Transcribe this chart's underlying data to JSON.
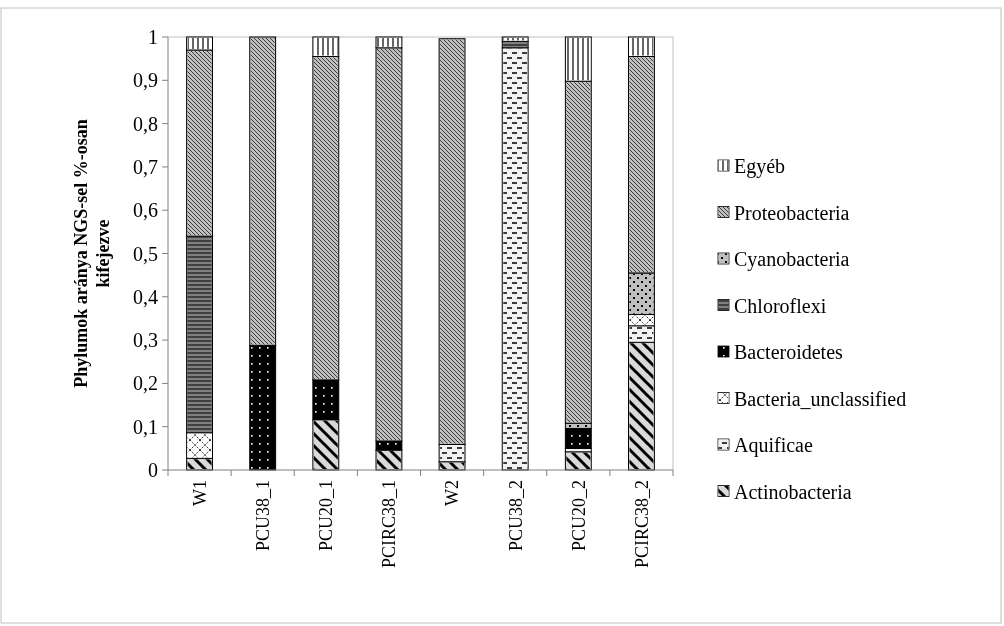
{
  "chart_data": {
    "type": "bar",
    "stacked": true,
    "ylabel": "Phylumok aránya NGS-sel %-osan kifejezve",
    "categories": [
      "W1",
      "PCU38_1",
      "PCU20_1",
      "PCIRC38_1",
      "W2",
      "PCU38_2",
      "PCU20_2",
      "PCIRC38_2"
    ],
    "series": [
      {
        "name": "Actinobacteria",
        "color": "#d9d9d9",
        "values": [
          0.027,
          0,
          0.116,
          0.046,
          0.019,
          0,
          0.042,
          0.295
        ]
      },
      {
        "name": "Aquificae",
        "color": "#f2f2f2",
        "values": [
          0,
          0,
          0,
          0,
          0.04,
          0.975,
          0.008,
          0.038
        ]
      },
      {
        "name": "Bacteria_unclassified",
        "color": "#ffffff",
        "values": [
          0.059,
          0,
          0,
          0,
          0,
          0,
          0,
          0.026
        ]
      },
      {
        "name": "Bacteroidetes",
        "color": "#000000",
        "values": [
          0,
          0.288,
          0.092,
          0.021,
          0,
          0,
          0.046,
          0
        ]
      },
      {
        "name": "Chloroflexi",
        "color": "#808080",
        "values": [
          0.454,
          0,
          0,
          0,
          0,
          0.015,
          0,
          0
        ]
      },
      {
        "name": "Cyanobacteria",
        "color": "#bfbfbf",
        "values": [
          0,
          0,
          0,
          0,
          0,
          0,
          0.012,
          0.096
        ]
      },
      {
        "name": "Proteobacteria",
        "color": "#c0c0c0",
        "values": [
          0.43,
          0.712,
          0.747,
          0.908,
          0.937,
          0,
          0.79,
          0.5
        ]
      },
      {
        "name": "Egyéb",
        "color": "#ffffff",
        "values": [
          0.03,
          0,
          0.045,
          0.025,
          0,
          0.01,
          0.102,
          0.045
        ]
      }
    ],
    "ylim": [
      0,
      1
    ],
    "yticks": [
      0,
      {
        "value": 0.1,
        "label": "0,1"
      },
      {
        "value": 0.2,
        "label": "0,2"
      },
      {
        "value": 0.3,
        "label": "0,3"
      },
      {
        "value": 0.4,
        "label": "0,4"
      },
      {
        "value": 0.5,
        "label": "0,5"
      },
      {
        "value": 0.6,
        "label": "0,6"
      },
      {
        "value": 0.7,
        "label": "0,7"
      },
      {
        "value": 0.8,
        "label": "0,8"
      },
      {
        "value": 0.9,
        "label": "0,9"
      },
      1
    ],
    "legend": "right"
  }
}
